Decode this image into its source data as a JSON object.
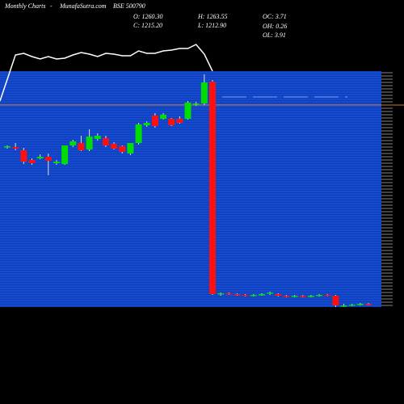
{
  "chart_data": {
    "type": "candlestick",
    "annotations": [
      "Monthly Charts",
      "MunafaSutra.com",
      "BSE 500790",
      "O: 1260.30",
      "C: 1215.20",
      "H: 1263.55",
      "L: 1212.90",
      "OC: 3.71",
      "OH: 0.26",
      "OL: 3.91"
    ],
    "open": [
      198,
      198,
      194,
      182,
      184,
      186,
      178,
      177,
      200,
      203,
      195,
      208,
      209,
      202,
      199,
      190,
      203,
      225,
      237,
      233,
      233,
      233,
      233,
      251,
      252,
      279,
      16,
      17,
      16,
      15,
      14,
      15,
      17,
      16,
      14,
      13,
      14,
      13,
      14,
      15,
      14,
      2,
      2,
      3,
      4
    ],
    "high": [
      200,
      203,
      197,
      184,
      189,
      190,
      182,
      200,
      207,
      212,
      220,
      215,
      212,
      204,
      200,
      203,
      228,
      230,
      240,
      240,
      234,
      236,
      255,
      254,
      288,
      281,
      18,
      18,
      17,
      16,
      16,
      17,
      19,
      17,
      15,
      15,
      15,
      15,
      16,
      16,
      15,
      4,
      4,
      5,
      5
    ],
    "low": [
      196,
      194,
      177,
      176,
      183,
      163,
      176,
      176,
      198,
      193,
      193,
      206,
      198,
      195,
      190,
      188,
      201,
      223,
      222,
      232,
      224,
      227,
      232,
      249,
      250,
      15,
      14,
      15,
      14,
      13,
      13,
      14,
      15,
      13,
      12,
      12,
      12,
      12,
      13,
      13,
      0,
      0,
      1,
      2,
      2
    ],
    "close": [
      199,
      196,
      180,
      178,
      186,
      181,
      180,
      200,
      205,
      194,
      211,
      212,
      200,
      196,
      192,
      203,
      226,
      228,
      224,
      238,
      225,
      228,
      253,
      252,
      278,
      16,
      17,
      16,
      15,
      14,
      15,
      16,
      18,
      14,
      13,
      14,
      13,
      14,
      15,
      14,
      2,
      2,
      3,
      4,
      3
    ],
    "line_values": [
      255,
      312,
      314,
      310,
      307,
      310,
      307,
      308,
      312,
      315,
      313,
      310,
      314,
      313,
      311,
      311,
      317,
      314,
      314,
      317,
      318,
      320,
      320,
      325,
      313,
      292,
      null,
      null,
      null,
      null,
      null,
      null,
      null,
      null,
      null,
      null,
      null,
      null,
      null,
      null,
      null,
      null,
      null,
      null,
      null
    ],
    "ylim": [
      0,
      320
    ],
    "up_color": "#00dd00",
    "down_color": "#ff1010",
    "line_color": "#ffffff",
    "panel_color": "#0a3fc0"
  }
}
